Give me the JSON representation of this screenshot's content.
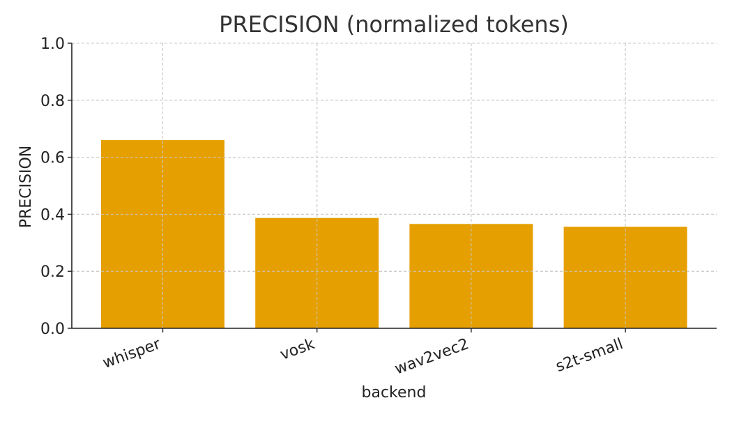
{
  "chart_data": {
    "type": "bar",
    "title": "PRECISION (normalized tokens)",
    "xlabel": "backend",
    "ylabel": "PRECISION",
    "categories": [
      "whisper",
      "vosk",
      "wav2vec2",
      "s2t-small"
    ],
    "values": [
      0.66,
      0.387,
      0.366,
      0.356
    ],
    "ylim": [
      0,
      1.0
    ],
    "yticks": [
      "0.0",
      "0.2",
      "0.4",
      "0.6",
      "0.8",
      "1.0"
    ],
    "grid": true,
    "bar_color": "#E69F00"
  }
}
